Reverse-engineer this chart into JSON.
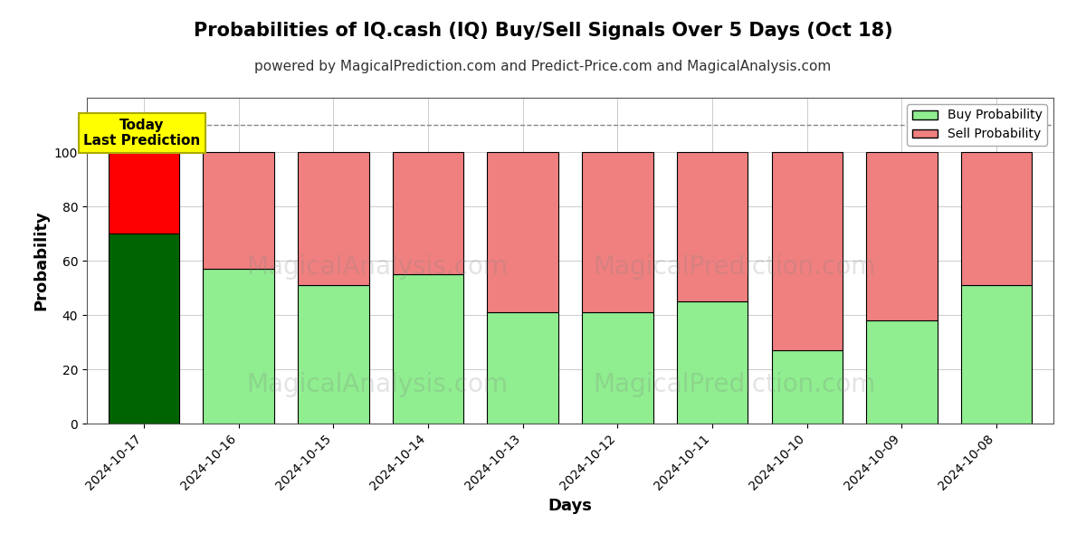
{
  "title": "Probabilities of IQ.cash (IQ) Buy/Sell Signals Over 5 Days (Oct 18)",
  "subtitle": "powered by MagicalPrediction.com and Predict-Price.com and MagicalAnalysis.com",
  "xlabel": "Days",
  "ylabel": "Probability",
  "dates": [
    "2024-10-17",
    "2024-10-16",
    "2024-10-15",
    "2024-10-14",
    "2024-10-13",
    "2024-10-12",
    "2024-10-11",
    "2024-10-10",
    "2024-10-09",
    "2024-10-08"
  ],
  "buy_values": [
    70,
    57,
    51,
    55,
    41,
    41,
    45,
    27,
    38,
    51
  ],
  "sell_values": [
    30,
    43,
    49,
    45,
    59,
    59,
    55,
    73,
    62,
    49
  ],
  "today_buy_color": "#006400",
  "today_sell_color": "#ff0000",
  "buy_color": "#90EE90",
  "sell_color": "#F08080",
  "bar_edge_color": "#000000",
  "ylim": [
    0,
    120
  ],
  "yticks": [
    0,
    20,
    40,
    60,
    80,
    100
  ],
  "dashed_line_y": 110,
  "dashed_line_color": "#888888",
  "annotation_text": "Today\nLast Prediction",
  "annotation_bg_color": "#FFFF00",
  "legend_buy_label": "Buy Probability",
  "legend_sell_label": "Sell Probability",
  "title_fontsize": 15,
  "subtitle_fontsize": 11,
  "axis_label_fontsize": 13,
  "tick_fontsize": 10,
  "background_color": "#ffffff",
  "grid_color": "#cccccc",
  "bar_width": 0.75
}
